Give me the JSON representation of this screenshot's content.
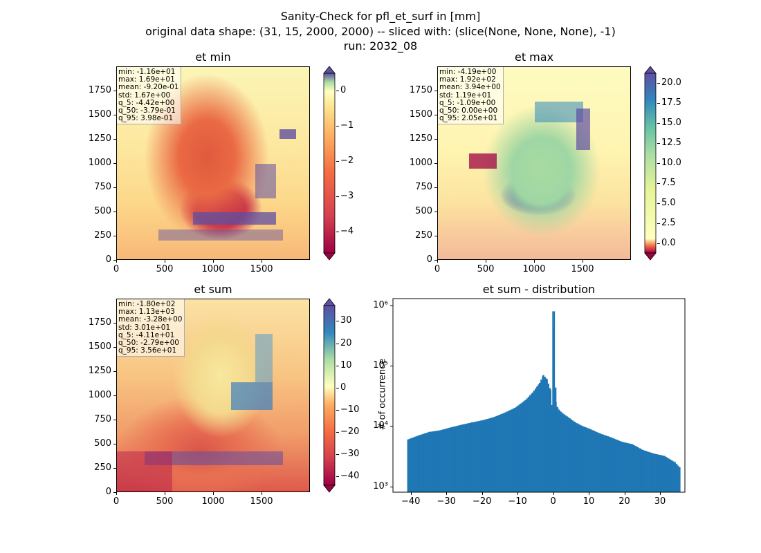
{
  "figure": {
    "title_line1": "Sanity-Check for pfl_et_surf in [mm]",
    "title_line2": "original data shape: (31, 15, 2000, 2000) -- sliced with: (slice(None, None, None), -1)",
    "title_line3": "run: 2032_08"
  },
  "panels": [
    {
      "title": "et min",
      "stats": [
        "min: -1.16e+01",
        "max: 1.69e+01",
        "mean: -9.20e-01",
        "std: 1.67e+00",
        "q_5: -4.42e+00",
        "q_50: -3.79e-01",
        "q_95: 3.98e-01"
      ],
      "xticks": [
        "0",
        "500",
        "1000",
        "1500"
      ],
      "yticks": [
        "0",
        "250",
        "500",
        "750",
        "1000",
        "1250",
        "1500",
        "1750"
      ],
      "cbar_ticks": [
        "0",
        "−1",
        "−2",
        "−3",
        "−4"
      ]
    },
    {
      "title": "et max",
      "stats": [
        "min: -4.19e+00",
        "max: 1.92e+02",
        "mean: 3.94e+00",
        "std: 1.19e+01",
        "q_5: -1.09e+00",
        "q_50: 0.00e+00",
        "q_95: 2.05e+01"
      ],
      "xticks": [
        "0",
        "500",
        "1000",
        "1500"
      ],
      "yticks": [
        "0",
        "250",
        "500",
        "750",
        "1000",
        "1250",
        "1500",
        "1750"
      ],
      "cbar_ticks": [
        "20.0",
        "17.5",
        "15.0",
        "12.5",
        "10.0",
        "7.5",
        "5.0",
        "2.5",
        "0.0"
      ]
    },
    {
      "title": "et sum",
      "stats": [
        "min: -1.80e+02",
        "max: 1.13e+03",
        "mean: -3.28e+00",
        "std: 3.01e+01",
        "q_5: -4.11e+01",
        "q_50: -2.79e+00",
        "q_95: 3.56e+01"
      ],
      "xticks": [
        "0",
        "500",
        "1000",
        "1500"
      ],
      "yticks": [
        "0",
        "250",
        "500",
        "750",
        "1000",
        "1250",
        "1500",
        "1750"
      ],
      "cbar_ticks": [
        "30",
        "20",
        "10",
        "0",
        "−10",
        "−20",
        "−30",
        "−40"
      ]
    }
  ],
  "colors": {
    "cmap_spectral": [
      "#9e0142",
      "#d53e4f",
      "#f46d43",
      "#fdae61",
      "#fee08b",
      "#ffffbf",
      "#e6f598",
      "#abdda4",
      "#66c2a5",
      "#3288bd",
      "#5e4fa2"
    ],
    "hist_bar": "#1f77b4"
  },
  "chart_data": {
    "type": "bar",
    "title": "et sum - distribution",
    "xlabel": "",
    "ylabel": "# of occurrence",
    "yscale": "log",
    "xlim": [
      -45,
      37
    ],
    "ylim": [
      800,
      1300000
    ],
    "xticks": [
      "−40",
      "−30",
      "−20",
      "−10",
      "0",
      "10",
      "20",
      "30"
    ],
    "yticks": [
      "10³",
      "10⁴",
      "10⁵",
      "10⁶"
    ],
    "bins": {
      "x": [
        -41,
        -38,
        -35,
        -32,
        -29,
        -26,
        -23,
        -20,
        -17,
        -14,
        -11,
        -8,
        -6,
        -4,
        -3,
        -2,
        -1,
        -0.5,
        0,
        0.5,
        1,
        2,
        4,
        6,
        8,
        10,
        13,
        16,
        19,
        22,
        25,
        28,
        31,
        34,
        35.5
      ],
      "y": [
        6000,
        7000,
        8000,
        8500,
        9500,
        10500,
        11500,
        12500,
        14000,
        16500,
        20000,
        27000,
        36000,
        52000,
        70000,
        60000,
        40000,
        20000,
        800000,
        25000,
        20000,
        17000,
        14000,
        11500,
        10000,
        9000,
        7500,
        6500,
        5500,
        5000,
        4000,
        3500,
        3200,
        2500,
        2000
      ]
    }
  }
}
